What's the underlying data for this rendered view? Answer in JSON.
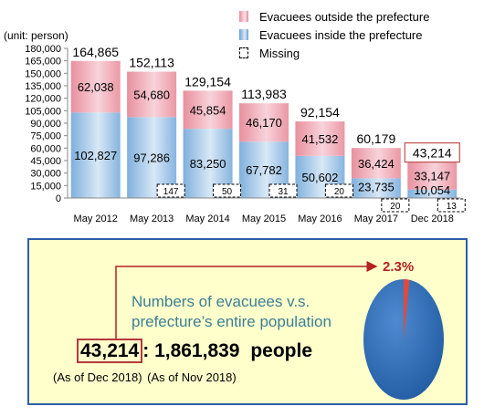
{
  "chart_data": {
    "type": "bar",
    "stacked": true,
    "unit_label": "(unit: person)",
    "categories": [
      "May 2012",
      "May 2013",
      "May 2014",
      "May 2015",
      "May 2016",
      "May 2017",
      "Dec 2018"
    ],
    "series": [
      {
        "name": "Evacuees inside the prefecture",
        "values": [
          102827,
          97286,
          83250,
          67782,
          50602,
          23735,
          10054
        ],
        "color": "#8ab8e0"
      },
      {
        "name": "Evacuees outside the prefecture",
        "values": [
          62038,
          54680,
          45854,
          46170,
          41532,
          36424,
          33147
        ],
        "color": "#eea4b0"
      }
    ],
    "missing": {
      "name": "Missing",
      "values": [
        null,
        147,
        50,
        31,
        20,
        20,
        13
      ]
    },
    "totals": [
      164865,
      152113,
      129154,
      113983,
      92154,
      60179,
      43214
    ],
    "value_labels_inside": [
      "102,827",
      "97,286",
      "83,250",
      "67,782",
      "50,602",
      "23,735",
      "10,054"
    ],
    "value_labels_outside": [
      "62,038",
      "54,680",
      "45,854",
      "46,170",
      "41,532",
      "36,424",
      "33,147"
    ],
    "total_labels": [
      "164,865",
      "152,113",
      "129,154",
      "113,983",
      "92,154",
      "60,179",
      "43,214"
    ],
    "missing_labels": [
      "",
      "147",
      "50",
      "31",
      "20",
      "20",
      "13"
    ],
    "ylim": [
      0,
      180000
    ],
    "yticks": [
      0,
      15000,
      30000,
      45000,
      60000,
      75000,
      90000,
      105000,
      120000,
      135000,
      150000,
      165000,
      180000
    ],
    "ytick_labels": [
      "0",
      "15,000",
      "30,000",
      "45,000",
      "60,000",
      "75,000",
      "90,000",
      "105,000",
      "120,000",
      "135,000",
      "150,000",
      "165,000",
      "180,000"
    ],
    "highlighted_total_index": 6,
    "highlight_color": "#c0504d"
  },
  "legend": {
    "outside": "Evacuees outside the prefecture",
    "inside": "Evacuees inside the prefecture",
    "missing": "Missing"
  },
  "panel": {
    "title": "Numbers of evacuees v.s. prefecture’s entire population",
    "evacuees": "43,214",
    "separator": ": ",
    "population": "1,861,839",
    "unit": "people",
    "asof_evacuees": "(As of Dec 2018)",
    "asof_population": "(As of Nov 2018)",
    "percent": "2.3%",
    "percent_value": 2.3,
    "pie_colors": {
      "main": "#2e6cb5",
      "slice": "#e04a3a"
    }
  }
}
